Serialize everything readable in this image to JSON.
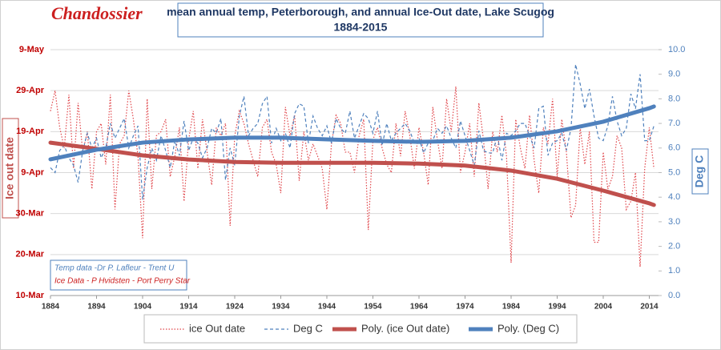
{
  "logo": "Chandossier",
  "chart_data": {
    "type": "line",
    "title": "mean annual temp, Peterborough, and annual Ice-Out date, Lake Scugog",
    "subtitle": "1884-2015",
    "ylabel": "Ice out date",
    "y2label": "Deg C",
    "annotations": [
      "Temp data -Dr P. Lafleur - Trent U",
      "Ice Data - P Hvidsten - Port Perry Star"
    ],
    "grid": true,
    "legend": "bottom",
    "x": [
      1884,
      1885,
      1886,
      1887,
      1888,
      1889,
      1890,
      1891,
      1892,
      1893,
      1894,
      1895,
      1896,
      1897,
      1898,
      1899,
      1900,
      1901,
      1902,
      1903,
      1904,
      1905,
      1906,
      1907,
      1908,
      1909,
      1910,
      1911,
      1912,
      1913,
      1914,
      1915,
      1916,
      1917,
      1918,
      1919,
      1920,
      1921,
      1922,
      1923,
      1924,
      1925,
      1926,
      1927,
      1928,
      1929,
      1930,
      1931,
      1932,
      1933,
      1934,
      1935,
      1936,
      1937,
      1938,
      1939,
      1940,
      1941,
      1942,
      1943,
      1944,
      1945,
      1946,
      1947,
      1948,
      1949,
      1950,
      1951,
      1952,
      1953,
      1954,
      1955,
      1956,
      1957,
      1958,
      1959,
      1960,
      1961,
      1962,
      1963,
      1964,
      1965,
      1966,
      1967,
      1968,
      1969,
      1970,
      1971,
      1972,
      1973,
      1974,
      1975,
      1976,
      1977,
      1978,
      1979,
      1980,
      1981,
      1982,
      1983,
      1984,
      1985,
      1986,
      1987,
      1988,
      1989,
      1990,
      1991,
      1992,
      1993,
      1994,
      1995,
      1996,
      1997,
      1998,
      1999,
      2000,
      2001,
      2002,
      2003,
      2004,
      2005,
      2006,
      2007,
      2008,
      2009,
      2010,
      2011,
      2012,
      2013,
      2014,
      2015
    ],
    "xlim": [
      1884,
      2016
    ],
    "xticks": [
      1884,
      1894,
      1904,
      1914,
      1924,
      1934,
      1944,
      1954,
      1964,
      1974,
      1984,
      1994,
      2004,
      2014
    ],
    "ylim": [
      69,
      129
    ],
    "yticks": [
      {
        "value": 69,
        "label": "10-Mar"
      },
      {
        "value": 79,
        "label": "20-Mar"
      },
      {
        "value": 89,
        "label": "30-Mar"
      },
      {
        "value": 99,
        "label": "9-Apr"
      },
      {
        "value": 109,
        "label": "19-Apr"
      },
      {
        "value": 119,
        "label": "29-Apr"
      },
      {
        "value": 129,
        "label": "9-May"
      }
    ],
    "y2lim": [
      0,
      10
    ],
    "y2ticks": [
      {
        "value": 0,
        "label": "0.0"
      },
      {
        "value": 1,
        "label": "1.0"
      },
      {
        "value": 2,
        "label": "2.0"
      },
      {
        "value": 3,
        "label": "3.0"
      },
      {
        "value": 4,
        "label": "4.0"
      },
      {
        "value": 5,
        "label": "5.0"
      },
      {
        "value": 6,
        "label": "6.0"
      },
      {
        "value": 7,
        "label": "7.0"
      },
      {
        "value": 8,
        "label": "8.0"
      },
      {
        "value": 9,
        "label": "9.0"
      },
      {
        "value": 10,
        "label": "10.0"
      }
    ],
    "series": [
      {
        "name": "ice Out date",
        "color": "#e0454a",
        "style": "dotted",
        "width": 1.2,
        "values": [
          114,
          119,
          110,
          105,
          118,
          100,
          116,
          104,
          109,
          95,
          109,
          111,
          101,
          118,
          90,
          106,
          108,
          119,
          112,
          103,
          83,
          117,
          95,
          108,
          109,
          112,
          98,
          103,
          110,
          92,
          107,
          114,
          100,
          112,
          104,
          96,
          110,
          108,
          111,
          86,
          108,
          114,
          111,
          106,
          102,
          98,
          110,
          112,
          104,
          101,
          94,
          115,
          108,
          113,
          97,
          109,
          102,
          106,
          103,
          100,
          90,
          106,
          113,
          111,
          104,
          104,
          99,
          108,
          112,
          85,
          107,
          110,
          105,
          101,
          99,
          111,
          103,
          114,
          108,
          100,
          110,
          104,
          96,
          115,
          107,
          100,
          117,
          109,
          120,
          99,
          104,
          111,
          98,
          116,
          107,
          95,
          109,
          104,
          113,
          103,
          77,
          112,
          105,
          100,
          113,
          102,
          94,
          110,
          106,
          117,
          98,
          112,
          104,
          88,
          91,
          110,
          101,
          109,
          82,
          82,
          104,
          95,
          98,
          108,
          105,
          90,
          92,
          99,
          76,
          100,
          110,
          100
        ]
      },
      {
        "name": "Deg C",
        "color": "#4f81bd",
        "style": "dashed",
        "width": 1.2,
        "axis": "y2",
        "values": [
          5.2,
          5.0,
          5.9,
          6.1,
          5.6,
          5.3,
          4.6,
          5.9,
          6.6,
          6.0,
          6.4,
          5.6,
          6.0,
          7.0,
          6.4,
          6.8,
          7.2,
          6.0,
          6.5,
          6.9,
          3.9,
          5.2,
          6.0,
          5.5,
          6.5,
          5.9,
          5.2,
          6.3,
          5.7,
          7.1,
          5.9,
          6.4,
          6.2,
          5.6,
          6.0,
          6.8,
          6.6,
          7.2,
          4.7,
          6.0,
          5.3,
          7.3,
          8.1,
          6.5,
          6.8,
          7.0,
          7.8,
          8.1,
          6.2,
          6.8,
          6.3,
          6.6,
          6.0,
          7.4,
          7.8,
          7.7,
          6.2,
          7.3,
          6.8,
          6.5,
          6.9,
          6.2,
          7.2,
          6.8,
          6.6,
          7.5,
          6.4,
          6.9,
          7.4,
          7.2,
          6.6,
          7.5,
          6.1,
          7.0,
          6.3,
          6.6,
          6.8,
          7.0,
          6.7,
          6.2,
          6.4,
          5.8,
          6.2,
          6.3,
          6.8,
          6.6,
          6.9,
          6.4,
          6.0,
          7.1,
          6.5,
          5.9,
          5.3,
          6.7,
          5.9,
          5.8,
          5.8,
          6.5,
          5.5,
          6.6,
          6.5,
          6.7,
          7.0,
          7.0,
          6.5,
          6.0,
          7.6,
          7.7,
          5.7,
          6.2,
          6.3,
          6.6,
          5.9,
          6.8,
          9.4,
          8.6,
          7.6,
          8.4,
          7.3,
          6.4,
          6.3,
          6.9,
          8.1,
          7.1,
          6.5,
          6.8,
          8.2,
          7.6,
          9.0,
          6.3,
          6.3,
          6.9
        ]
      },
      {
        "name": "Poly. (ice Out date)",
        "color": "#c0504d",
        "style": "solid",
        "width": 5,
        "x": [
          1884,
          1894,
          1904,
          1914,
          1924,
          1934,
          1944,
          1954,
          1964,
          1974,
          1984,
          1994,
          2004,
          2014,
          2015
        ],
        "values": [
          106.3,
          104.8,
          103.2,
          102.2,
          101.6,
          101.4,
          101.4,
          101.4,
          101.2,
          100.7,
          99.5,
          97.5,
          94.6,
          91.5,
          91.1
        ]
      },
      {
        "name": "Poly. (Deg C)",
        "color": "#4f81bd",
        "style": "solid",
        "width": 5,
        "axis": "y2",
        "x": [
          1884,
          1894,
          1904,
          1914,
          1924,
          1934,
          1944,
          1954,
          1964,
          1974,
          1984,
          1994,
          2004,
          2014,
          2015
        ],
        "values": [
          5.54,
          5.93,
          6.22,
          6.35,
          6.42,
          6.42,
          6.35,
          6.29,
          6.25,
          6.29,
          6.42,
          6.68,
          7.07,
          7.62,
          7.69
        ]
      }
    ]
  }
}
